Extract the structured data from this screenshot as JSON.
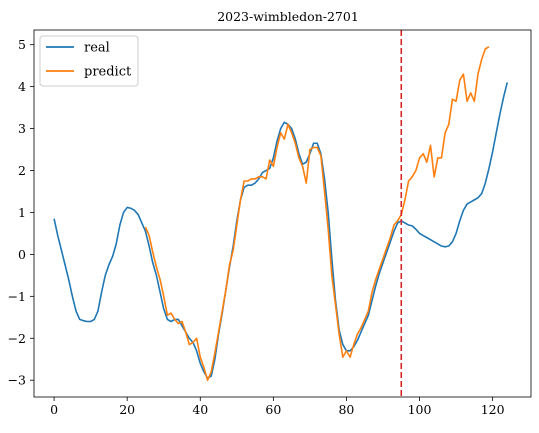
{
  "chart_data": {
    "type": "line",
    "title": "2023-wimbledon-2701",
    "xlabel": "",
    "ylabel": "",
    "xlim": [
      -5.5,
      130.5
    ],
    "ylim": [
      -3.4,
      5.35
    ],
    "xticks": [
      0,
      20,
      40,
      60,
      80,
      100,
      120
    ],
    "yticks": [
      -3,
      -2,
      -1,
      0,
      1,
      2,
      3,
      4,
      5
    ],
    "legend_position": "top-left",
    "grid": false,
    "vline": {
      "x": 95,
      "color": "#d62728",
      "style": "dashed"
    },
    "series": [
      {
        "name": "real",
        "color": "#1f77b4",
        "x": [
          0,
          1,
          2,
          3,
          4,
          5,
          6,
          7,
          8,
          9,
          10,
          11,
          12,
          13,
          14,
          15,
          16,
          17,
          18,
          19,
          20,
          21,
          22,
          23,
          24,
          25,
          26,
          27,
          28,
          29,
          30,
          31,
          32,
          33,
          34,
          35,
          36,
          37,
          38,
          39,
          40,
          41,
          42,
          43,
          44,
          45,
          46,
          47,
          48,
          49,
          50,
          51,
          52,
          53,
          54,
          55,
          56,
          57,
          58,
          59,
          60,
          61,
          62,
          63,
          64,
          65,
          66,
          67,
          68,
          69,
          70,
          71,
          72,
          73,
          74,
          75,
          76,
          77,
          78,
          79,
          80,
          81,
          82,
          83,
          84,
          85,
          86,
          87,
          88,
          89,
          90,
          91,
          92,
          93,
          94,
          95,
          96,
          97,
          98,
          99,
          100,
          101,
          102,
          103,
          104,
          105,
          106,
          107,
          108,
          109,
          110,
          111,
          112,
          113,
          114,
          115,
          116,
          117,
          118,
          119,
          120,
          121,
          122,
          123,
          124
        ],
        "values": [
          0.85,
          0.45,
          0.1,
          -0.25,
          -0.6,
          -1.0,
          -1.35,
          -1.55,
          -1.58,
          -1.6,
          -1.6,
          -1.55,
          -1.35,
          -0.9,
          -0.5,
          -0.25,
          -0.05,
          0.25,
          0.7,
          1.0,
          1.12,
          1.1,
          1.05,
          0.95,
          0.75,
          0.55,
          0.2,
          -0.2,
          -0.5,
          -0.9,
          -1.3,
          -1.55,
          -1.6,
          -1.55,
          -1.55,
          -1.7,
          -1.85,
          -2.0,
          -2.1,
          -2.3,
          -2.6,
          -2.8,
          -2.95,
          -2.9,
          -2.5,
          -1.9,
          -1.4,
          -0.85,
          -0.3,
          0.2,
          0.8,
          1.3,
          1.6,
          1.65,
          1.65,
          1.7,
          1.8,
          1.95,
          2.0,
          2.05,
          2.3,
          2.7,
          3.0,
          3.15,
          3.1,
          3.0,
          2.75,
          2.4,
          2.15,
          2.2,
          2.4,
          2.65,
          2.65,
          2.4,
          1.8,
          1.0,
          -0.1,
          -1.1,
          -1.8,
          -2.15,
          -2.3,
          -2.3,
          -2.2,
          -2.05,
          -1.85,
          -1.65,
          -1.45,
          -1.1,
          -0.75,
          -0.45,
          -0.2,
          0.05,
          0.3,
          0.55,
          0.75,
          0.8,
          0.75,
          0.7,
          0.68,
          0.6,
          0.5,
          0.45,
          0.4,
          0.35,
          0.3,
          0.25,
          0.2,
          0.18,
          0.2,
          0.3,
          0.5,
          0.8,
          1.05,
          1.2,
          1.25,
          1.3,
          1.35,
          1.45,
          1.7,
          2.05,
          2.45,
          2.9,
          3.35,
          3.75,
          4.1
        ]
      },
      {
        "name": "predict",
        "color": "#ff7f0e",
        "x": [
          25,
          26,
          27,
          28,
          29,
          30,
          31,
          32,
          33,
          34,
          35,
          36,
          37,
          38,
          39,
          40,
          41,
          42,
          43,
          44,
          45,
          46,
          47,
          48,
          49,
          50,
          51,
          52,
          53,
          54,
          55,
          56,
          57,
          58,
          59,
          60,
          61,
          62,
          63,
          64,
          65,
          66,
          67,
          68,
          69,
          70,
          71,
          72,
          73,
          74,
          75,
          76,
          77,
          78,
          79,
          80,
          81,
          82,
          83,
          84,
          85,
          86,
          87,
          88,
          89,
          90,
          91,
          92,
          93,
          94,
          95,
          96,
          97,
          98,
          99,
          100,
          101,
          102,
          103,
          104,
          105,
          106,
          107,
          108,
          109,
          110,
          111,
          112,
          113,
          114,
          115,
          116,
          117,
          118,
          119
        ],
        "values": [
          0.65,
          0.45,
          0.05,
          -0.3,
          -0.6,
          -1.0,
          -1.45,
          -1.4,
          -1.55,
          -1.65,
          -1.6,
          -1.85,
          -2.15,
          -2.1,
          -2.0,
          -2.45,
          -2.7,
          -3.0,
          -2.8,
          -2.35,
          -1.85,
          -1.35,
          -0.85,
          -0.25,
          0.1,
          0.7,
          1.3,
          1.75,
          1.75,
          1.8,
          1.8,
          1.85,
          1.85,
          1.8,
          2.25,
          2.1,
          2.55,
          2.9,
          2.75,
          3.1,
          2.9,
          2.65,
          2.3,
          2.1,
          1.7,
          2.5,
          2.55,
          2.55,
          2.35,
          1.5,
          0.6,
          -0.5,
          -1.2,
          -1.9,
          -2.45,
          -2.3,
          -2.45,
          -2.15,
          -1.9,
          -1.75,
          -1.55,
          -1.35,
          -0.9,
          -0.6,
          -0.35,
          -0.1,
          0.15,
          0.4,
          0.7,
          0.8,
          0.95,
          1.3,
          1.75,
          1.85,
          2.0,
          2.3,
          2.4,
          2.2,
          2.6,
          1.85,
          2.3,
          2.3,
          2.9,
          3.1,
          3.7,
          3.65,
          4.15,
          4.3,
          3.65,
          3.85,
          3.65,
          4.3,
          4.65,
          4.9,
          4.95
        ]
      }
    ]
  }
}
